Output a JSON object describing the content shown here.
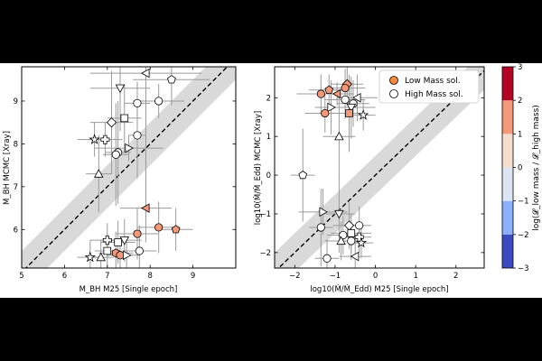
{
  "figure_background": "#000000",
  "colorbar": {
    "label": "log(𝓛_low mass / 𝓛_high mass)",
    "ticks": [
      -3,
      -2,
      -1,
      0,
      1,
      2,
      3
    ],
    "tick_labels": [
      "−3",
      "−2",
      "−1",
      "0",
      "1",
      "2",
      "3"
    ],
    "bins": [
      {
        "from": -3,
        "to": -2,
        "color": "#3b4cc0"
      },
      {
        "from": -2,
        "to": -1,
        "color": "#8db0fe"
      },
      {
        "from": -1,
        "to": 0,
        "color": "#dde5f4"
      },
      {
        "from": 0,
        "to": 1,
        "color": "#f5dcd0"
      },
      {
        "from": 1,
        "to": 2,
        "color": "#f4987a"
      },
      {
        "from": 2,
        "to": 3,
        "color": "#b40426"
      }
    ]
  },
  "chart_data": [
    {
      "type": "scatter",
      "xlabel": "M_BH M25 [Single epoch]",
      "ylabel": "M_BH MCMC [Xray]",
      "xlim": [
        5,
        10
      ],
      "ylim": [
        5.1,
        9.8
      ],
      "xticks": [
        5,
        6,
        7,
        8,
        9
      ],
      "yticks": [
        6,
        7,
        8,
        9
      ],
      "one_to_one_line": true,
      "band_halfwidth": 0.5,
      "points": [
        {
          "x": 7.9,
          "y": 9.65,
          "m": "<",
          "c": "w",
          "ex": 1.3,
          "ey": 3.0
        },
        {
          "x": 8.5,
          "y": 9.5,
          "m": "p",
          "c": "w",
          "ex": 0.9,
          "ey": 0.6
        },
        {
          "x": 7.3,
          "y": 9.3,
          "m": "v",
          "c": "w",
          "ex": 0.7,
          "ey": 1.0
        },
        {
          "x": 7.7,
          "y": 8.95,
          "m": "o",
          "c": "w",
          "ex": 0.3,
          "ey": 0.5
        },
        {
          "x": 8.2,
          "y": 9.0,
          "m": "o",
          "c": "w",
          "ex": 0.6,
          "ey": 0.4
        },
        {
          "x": 7.4,
          "y": 8.6,
          "m": "s",
          "c": "w",
          "ex": 0.4,
          "ey": 0.8
        },
        {
          "x": 7.1,
          "y": 8.5,
          "m": "D",
          "c": "w",
          "ex": 0.5,
          "ey": 1.2
        },
        {
          "x": 7.7,
          "y": 8.2,
          "m": "o",
          "c": "w",
          "ex": 0.2,
          "ey": 1.0
        },
        {
          "x": 6.7,
          "y": 8.1,
          "m": "*",
          "c": "w",
          "ex": 0.4,
          "ey": 0.4
        },
        {
          "x": 6.95,
          "y": 8.1,
          "m": "P",
          "c": "w",
          "ex": 0.4,
          "ey": 0.4
        },
        {
          "x": 7.5,
          "y": 7.9,
          "m": ">",
          "c": "w",
          "ex": 0.8,
          "ey": 0.3
        },
        {
          "x": 7.25,
          "y": 7.8,
          "m": "o",
          "c": "w",
          "ex": 0.3,
          "ey": 1.2
        },
        {
          "x": 7.2,
          "y": 7.75,
          "m": "o",
          "c": "w",
          "ex": 0.3,
          "ey": 1.2
        },
        {
          "x": 6.8,
          "y": 7.3,
          "m": "^",
          "c": "w",
          "ex": 0.3,
          "ey": 0.9
        },
        {
          "x": 7.9,
          "y": 6.5,
          "m": "<",
          "c": "o",
          "ex": 0.6,
          "ey": 0.8
        },
        {
          "x": 8.2,
          "y": 6.05,
          "m": "o",
          "c": "o",
          "ex": 0.5,
          "ey": 0.6
        },
        {
          "x": 8.6,
          "y": 6.0,
          "m": "p",
          "c": "o",
          "ex": 0.4,
          "ey": 0.5
        },
        {
          "x": 7.7,
          "y": 5.9,
          "m": "o",
          "c": "o",
          "ex": 0.5,
          "ey": 0.6
        },
        {
          "x": 7.4,
          "y": 5.75,
          "m": "v",
          "c": "w",
          "ex": 0.4,
          "ey": 0.5
        },
        {
          "x": 7.0,
          "y": 5.75,
          "m": "P",
          "c": "w",
          "ex": 0.4,
          "ey": 0.4
        },
        {
          "x": 7.25,
          "y": 5.7,
          "m": "s",
          "c": "w",
          "ex": 0.4,
          "ey": 0.5
        },
        {
          "x": 7.75,
          "y": 5.5,
          "m": "o",
          "c": "w",
          "ex": 0.4,
          "ey": 0.6
        },
        {
          "x": 7.2,
          "y": 5.45,
          "m": "h",
          "c": "o",
          "ex": 0.4,
          "ey": 0.5
        },
        {
          "x": 7.0,
          "y": 5.5,
          "m": "s",
          "c": "w",
          "ex": 0.3,
          "ey": 0.4
        },
        {
          "x": 7.3,
          "y": 5.4,
          "m": "o",
          "c": "o",
          "ex": 0.3,
          "ey": 0.4
        },
        {
          "x": 7.45,
          "y": 5.4,
          "m": ">",
          "c": "w",
          "ex": 0.3,
          "ey": 0.4
        },
        {
          "x": 6.85,
          "y": 5.35,
          "m": "^",
          "c": "w",
          "ex": 0.3,
          "ey": 0.4
        },
        {
          "x": 6.6,
          "y": 5.35,
          "m": "*",
          "c": "w",
          "ex": 0.3,
          "ey": 0.4
        }
      ]
    },
    {
      "type": "scatter",
      "xlabel": "log10(Ṁ/Ṁ_Edd) M25 [Single epoch]",
      "ylabel": "log10(Ṁ/Ṁ_Edd) MCMC [Xray]",
      "xlim": [
        -2.5,
        2.7
      ],
      "ylim": [
        -2.4,
        2.8
      ],
      "xticks": [
        -2,
        -1,
        0,
        1,
        2
      ],
      "yticks": [
        -2,
        -1,
        0,
        1,
        2
      ],
      "tick_labels": [
        "−2",
        "−1",
        "0",
        "1",
        "2"
      ],
      "one_to_one_line": true,
      "band_halfwidth": 0.5,
      "legend": {
        "placement": "top-right",
        "entries": [
          {
            "label": "Low Mass sol.",
            "c": "o"
          },
          {
            "label": "High Mass sol.",
            "c": "w"
          }
        ]
      },
      "points": [
        {
          "x": -0.7,
          "y": 2.35,
          "m": "D",
          "c": "o",
          "ex": 0.4,
          "ey": 0.5
        },
        {
          "x": -0.75,
          "y": 2.25,
          "m": "o",
          "c": "o",
          "ex": 0.5,
          "ey": 0.5
        },
        {
          "x": -0.95,
          "y": 2.1,
          "m": "<",
          "c": "o",
          "ex": 0.4,
          "ey": 0.3
        },
        {
          "x": -1.35,
          "y": 2.1,
          "m": "o",
          "c": "o",
          "ex": 0.6,
          "ey": 0.5
        },
        {
          "x": -1.15,
          "y": 2.2,
          "m": "p",
          "c": "o",
          "ex": 0.5,
          "ey": 0.4
        },
        {
          "x": -0.75,
          "y": 1.95,
          "m": "o",
          "c": "w",
          "ex": 0.5,
          "ey": 0.5
        },
        {
          "x": -0.45,
          "y": 2.0,
          "m": "<",
          "c": "w",
          "ex": 0.5,
          "ey": 0.6
        },
        {
          "x": -0.55,
          "y": 1.85,
          "m": "o",
          "c": "w",
          "ex": 0.4,
          "ey": 0.6
        },
        {
          "x": -1.1,
          "y": 1.75,
          "m": ">",
          "c": "w",
          "ex": 0.4,
          "ey": 0.7
        },
        {
          "x": -0.6,
          "y": 1.75,
          "m": "v",
          "c": "w",
          "ex": 0.6,
          "ey": 0.8
        },
        {
          "x": -1.25,
          "y": 1.6,
          "m": "o",
          "c": "o",
          "ex": 0.5,
          "ey": 0.5
        },
        {
          "x": -0.65,
          "y": 1.6,
          "m": "s",
          "c": "o",
          "ex": 0.3,
          "ey": 1.0
        },
        {
          "x": -0.3,
          "y": 1.55,
          "m": "*",
          "c": "w",
          "ex": 0.3,
          "ey": 0.4
        },
        {
          "x": -0.9,
          "y": 1.0,
          "m": "^",
          "c": "w",
          "ex": 0.4,
          "ey": 1.0
        },
        {
          "x": -1.8,
          "y": 0.0,
          "m": "p",
          "c": "w",
          "ex": 0.3,
          "ey": 1.2
        },
        {
          "x": -1.3,
          "y": -0.95,
          "m": ">",
          "c": "w",
          "ex": 0.6,
          "ey": 0.6
        },
        {
          "x": -0.9,
          "y": -1.0,
          "m": "v",
          "c": "w",
          "ex": 0.4,
          "ey": 1.0
        },
        {
          "x": -0.65,
          "y": -1.3,
          "m": "D",
          "c": "w",
          "ex": 0.4,
          "ey": 0.6
        },
        {
          "x": -0.4,
          "y": -1.3,
          "m": "o",
          "c": "w",
          "ex": 0.3,
          "ey": 0.5
        },
        {
          "x": -1.35,
          "y": -1.35,
          "m": "o",
          "c": "w",
          "ex": 0.3,
          "ey": 1.0
        },
        {
          "x": -0.6,
          "y": -1.5,
          "m": "s",
          "c": "w",
          "ex": 0.5,
          "ey": 0.5
        },
        {
          "x": -0.8,
          "y": -1.55,
          "m": "o",
          "c": "w",
          "ex": 0.4,
          "ey": 0.5
        },
        {
          "x": -0.4,
          "y": -1.6,
          "m": "P",
          "c": "w",
          "ex": 0.3,
          "ey": 0.4
        },
        {
          "x": -0.85,
          "y": -1.7,
          "m": "^",
          "c": "w",
          "ex": 0.4,
          "ey": 0.5
        },
        {
          "x": -0.6,
          "y": -1.7,
          "m": "o",
          "c": "w",
          "ex": 0.3,
          "ey": 0.5
        },
        {
          "x": -0.35,
          "y": -1.75,
          "m": "*",
          "c": "w",
          "ex": 0.3,
          "ey": 0.4
        },
        {
          "x": -0.5,
          "y": -2.1,
          "m": "<",
          "c": "w",
          "ex": 0.4,
          "ey": 0.5
        },
        {
          "x": -1.2,
          "y": -2.15,
          "m": "o",
          "c": "w",
          "ex": 0.3,
          "ey": 0.5
        }
      ]
    }
  ]
}
